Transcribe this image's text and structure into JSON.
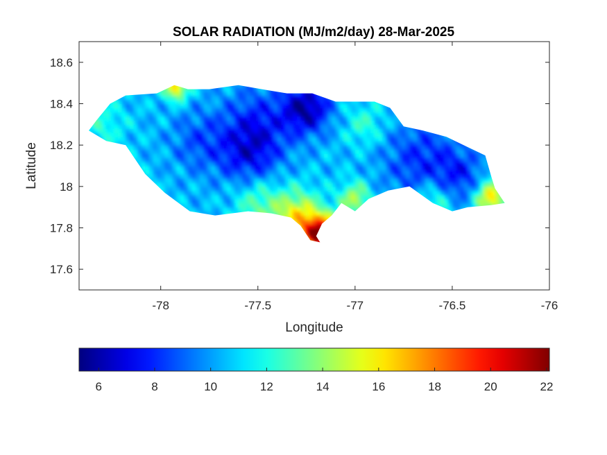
{
  "chart_data": {
    "type": "heatmap",
    "title": "SOLAR RADIATION (MJ/m2/day) 28-Mar-2025",
    "xlabel": "Longitude",
    "ylabel": "Latitude",
    "xlim": [
      -78.42,
      -76
    ],
    "ylim": [
      17.5,
      18.7
    ],
    "xticks": [
      -78,
      -77.5,
      -77,
      -76.5,
      -76
    ],
    "xtick_labels": [
      "-78",
      "-77.5",
      "-77",
      "-76.5",
      "-76"
    ],
    "yticks": [
      17.6,
      17.8,
      18,
      18.2,
      18.4,
      18.6
    ],
    "ytick_labels": [
      "17.6",
      "17.8",
      "18",
      "18.2",
      "18.4",
      "18.6"
    ],
    "grid": false,
    "colormap": "jet",
    "colorbar": {
      "orientation": "horizontal",
      "location": "below",
      "range": [
        5.3,
        22.1
      ],
      "ticks": [
        6,
        8,
        10,
        12,
        14,
        16,
        18,
        20,
        22
      ],
      "tick_labels": [
        "6",
        "8",
        "10",
        "12",
        "14",
        "16",
        "18",
        "20",
        "22"
      ]
    },
    "outline_lonlat": [
      [
        -78.37,
        18.27
      ],
      [
        -78.33,
        18.32
      ],
      [
        -78.26,
        18.4
      ],
      [
        -78.18,
        18.44
      ],
      [
        -78.02,
        18.45
      ],
      [
        -77.93,
        18.49
      ],
      [
        -77.86,
        18.47
      ],
      [
        -77.75,
        18.47
      ],
      [
        -77.6,
        18.49
      ],
      [
        -77.48,
        18.47
      ],
      [
        -77.35,
        18.45
      ],
      [
        -77.22,
        18.45
      ],
      [
        -77.1,
        18.41
      ],
      [
        -77.0,
        18.41
      ],
      [
        -76.9,
        18.41
      ],
      [
        -76.82,
        18.38
      ],
      [
        -76.75,
        18.29
      ],
      [
        -76.65,
        18.27
      ],
      [
        -76.53,
        18.24
      ],
      [
        -76.42,
        18.19
      ],
      [
        -76.33,
        18.15
      ],
      [
        -76.3,
        18.05
      ],
      [
        -76.28,
        17.99
      ],
      [
        -76.23,
        17.92
      ],
      [
        -76.3,
        17.91
      ],
      [
        -76.42,
        17.9
      ],
      [
        -76.5,
        17.88
      ],
      [
        -76.6,
        17.92
      ],
      [
        -76.72,
        18.0
      ],
      [
        -76.83,
        17.98
      ],
      [
        -76.93,
        17.94
      ],
      [
        -77.0,
        17.88
      ],
      [
        -77.07,
        17.92
      ],
      [
        -77.12,
        17.86
      ],
      [
        -77.17,
        17.82
      ],
      [
        -77.2,
        17.76
      ],
      [
        -77.18,
        17.73
      ],
      [
        -77.23,
        17.74
      ],
      [
        -77.28,
        17.81
      ],
      [
        -77.33,
        17.85
      ],
      [
        -77.43,
        17.87
      ],
      [
        -77.55,
        17.88
      ],
      [
        -77.72,
        17.86
      ],
      [
        -77.85,
        17.88
      ],
      [
        -77.98,
        17.97
      ],
      [
        -78.08,
        18.06
      ],
      [
        -78.18,
        18.2
      ],
      [
        -78.28,
        18.22
      ],
      [
        -78.37,
        18.27
      ]
    ],
    "field": {
      "base_value": 10.5,
      "features": [
        {
          "lon": -77.25,
          "lat": 18.38,
          "amp": -4.5,
          "r": 0.12
        },
        {
          "lon": -77.5,
          "lat": 18.3,
          "amp": -2.5,
          "r": 0.18
        },
        {
          "lon": -77.55,
          "lat": 18.15,
          "amp": -2.5,
          "r": 0.15
        },
        {
          "lon": -77.8,
          "lat": 18.22,
          "amp": -1.8,
          "r": 0.15
        },
        {
          "lon": -76.65,
          "lat": 18.12,
          "amp": -2.5,
          "r": 0.2
        },
        {
          "lon": -76.45,
          "lat": 18.05,
          "amp": -2.0,
          "r": 0.12
        },
        {
          "lon": -77.18,
          "lat": 17.77,
          "amp": 11.0,
          "r": 0.09
        },
        {
          "lon": -77.3,
          "lat": 17.86,
          "amp": 5.0,
          "r": 0.12
        },
        {
          "lon": -77.0,
          "lat": 17.94,
          "amp": 4.0,
          "r": 0.08
        },
        {
          "lon": -77.5,
          "lat": 17.92,
          "amp": 2.5,
          "r": 0.12
        },
        {
          "lon": -77.92,
          "lat": 18.48,
          "amp": 6.0,
          "r": 0.06
        },
        {
          "lon": -76.3,
          "lat": 17.95,
          "amp": 6.0,
          "r": 0.08
        },
        {
          "lon": -76.6,
          "lat": 17.93,
          "amp": 2.5,
          "r": 0.1
        },
        {
          "lon": -78.3,
          "lat": 18.3,
          "amp": 1.5,
          "r": 0.12
        },
        {
          "lon": -76.95,
          "lat": 18.3,
          "amp": 1.8,
          "r": 0.1
        }
      ]
    }
  }
}
